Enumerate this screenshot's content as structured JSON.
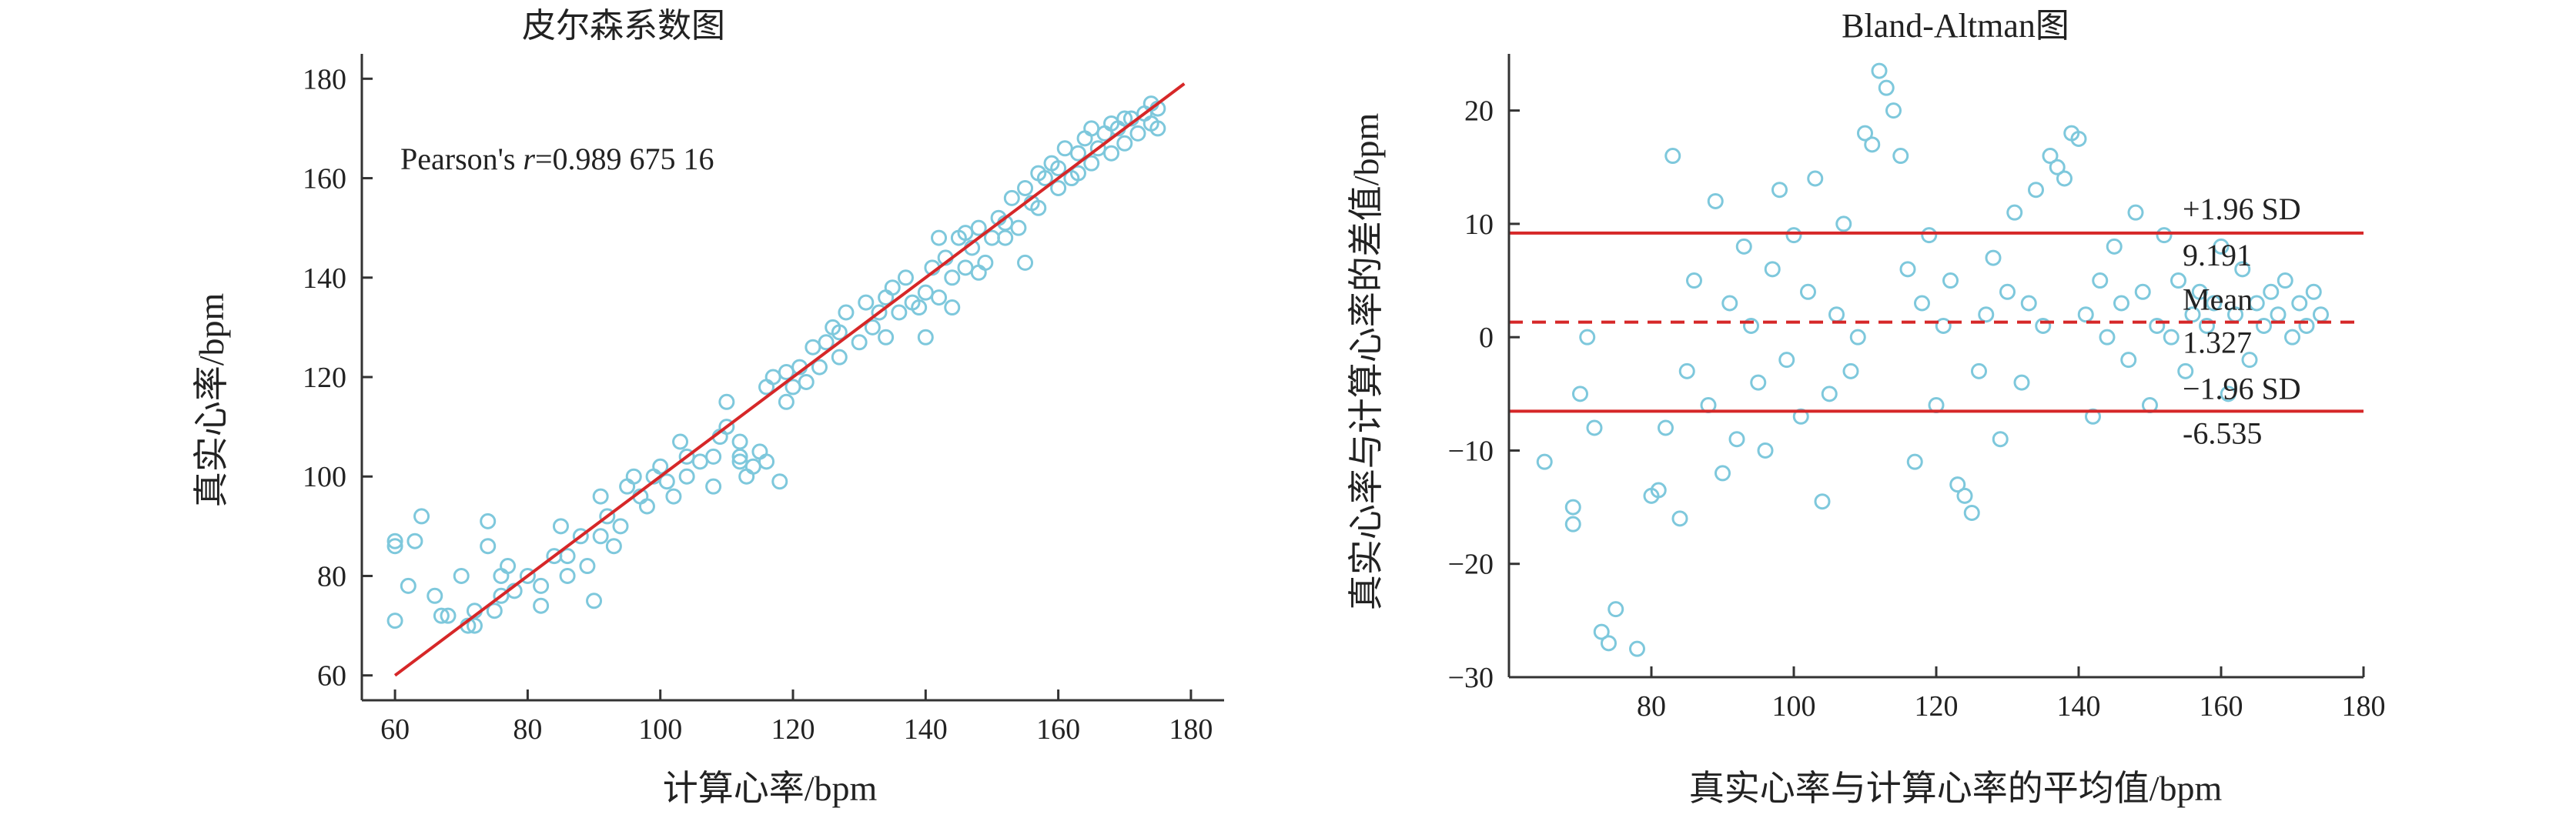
{
  "colors": {
    "points": "#7ec8dc",
    "fit_line": "#d62728",
    "limit_line": "#d62728",
    "axis": "#333333"
  },
  "chart_data": [
    {
      "type": "scatter",
      "title": "皮尔森系数图",
      "xlabel": "计算心率/bpm",
      "ylabel": "真实心率/bpm",
      "xlim": [
        55,
        185
      ],
      "ylim": [
        55,
        185
      ],
      "xticks": [
        60,
        80,
        100,
        120,
        140,
        160,
        180
      ],
      "yticks": [
        60,
        80,
        100,
        120,
        140,
        160,
        180
      ],
      "annotation": {
        "prefix": "Pearson's ",
        "var": "r",
        "value": "=0.989 675 16"
      },
      "fit_line": {
        "x": [
          60,
          179
        ],
        "y": [
          60,
          179
        ]
      },
      "grid": false,
      "points": [
        [
          60,
          71
        ],
        [
          60,
          86
        ],
        [
          60,
          87
        ],
        [
          62,
          78
        ],
        [
          63,
          87
        ],
        [
          64,
          92
        ],
        [
          66,
          76
        ],
        [
          67,
          72
        ],
        [
          68,
          72
        ],
        [
          70,
          80
        ],
        [
          71,
          70
        ],
        [
          72,
          70
        ],
        [
          72,
          73
        ],
        [
          74,
          86
        ],
        [
          74,
          91
        ],
        [
          75,
          73
        ],
        [
          76,
          76
        ],
        [
          76,
          80
        ],
        [
          77,
          82
        ],
        [
          78,
          77
        ],
        [
          80,
          80
        ],
        [
          82,
          74
        ],
        [
          82,
          78
        ],
        [
          85,
          90
        ],
        [
          86,
          84
        ],
        [
          90,
          75
        ],
        [
          91,
          96
        ],
        [
          92,
          92
        ],
        [
          94,
          90
        ],
        [
          95,
          98
        ],
        [
          96,
          100
        ],
        [
          98,
          94
        ],
        [
          100,
          102
        ],
        [
          102,
          96
        ],
        [
          103,
          107
        ],
        [
          104,
          100
        ],
        [
          106,
          103
        ],
        [
          108,
          104
        ],
        [
          109,
          108
        ],
        [
          110,
          110
        ],
        [
          112,
          107
        ],
        [
          113,
          100
        ],
        [
          114,
          102
        ],
        [
          115,
          105
        ],
        [
          116,
          103
        ],
        [
          118,
          99
        ],
        [
          117,
          120
        ],
        [
          119,
          115
        ],
        [
          120,
          118
        ],
        [
          121,
          122
        ],
        [
          122,
          119
        ],
        [
          123,
          126
        ],
        [
          124,
          122
        ],
        [
          125,
          127
        ],
        [
          126,
          130
        ],
        [
          127,
          124
        ],
        [
          128,
          133
        ],
        [
          130,
          127
        ],
        [
          131,
          135
        ],
        [
          132,
          130
        ],
        [
          133,
          133
        ],
        [
          134,
          128
        ],
        [
          135,
          138
        ],
        [
          136,
          133
        ],
        [
          137,
          140
        ],
        [
          138,
          135
        ],
        [
          140,
          137
        ],
        [
          140,
          128
        ],
        [
          142,
          136
        ],
        [
          143,
          144
        ],
        [
          144,
          140
        ],
        [
          145,
          148
        ],
        [
          146,
          142
        ],
        [
          147,
          146
        ],
        [
          148,
          150
        ],
        [
          149,
          143
        ],
        [
          150,
          148
        ],
        [
          151,
          152
        ],
        [
          152,
          151
        ],
        [
          153,
          156
        ],
        [
          154,
          150
        ],
        [
          155,
          158
        ],
        [
          156,
          155
        ],
        [
          157,
          154
        ],
        [
          158,
          160
        ],
        [
          159,
          163
        ],
        [
          160,
          158
        ],
        [
          161,
          166
        ],
        [
          162,
          160
        ],
        [
          163,
          165
        ],
        [
          164,
          168
        ],
        [
          165,
          163
        ],
        [
          166,
          166
        ],
        [
          167,
          169
        ],
        [
          168,
          165
        ],
        [
          169,
          170
        ],
        [
          170,
          167
        ],
        [
          171,
          172
        ],
        [
          172,
          169
        ],
        [
          173,
          173
        ],
        [
          174,
          171
        ],
        [
          175,
          174
        ],
        [
          175,
          170
        ],
        [
          155,
          143
        ],
        [
          160,
          162
        ],
        [
          165,
          170
        ],
        [
          142,
          148
        ],
        [
          144,
          134
        ],
        [
          139,
          134
        ],
        [
          148,
          141
        ],
        [
          112,
          104
        ],
        [
          112,
          103
        ],
        [
          108,
          98
        ],
        [
          104,
          104
        ],
        [
          97,
          96
        ],
        [
          93,
          86
        ],
        [
          88,
          88
        ],
        [
          84,
          84
        ],
        [
          86,
          80
        ],
        [
          89,
          82
        ],
        [
          91,
          88
        ],
        [
          99,
          100
        ],
        [
          101,
          99
        ],
        [
          110,
          115
        ],
        [
          116,
          118
        ],
        [
          119,
          121
        ],
        [
          127,
          129
        ],
        [
          134,
          136
        ],
        [
          141,
          142
        ],
        [
          146,
          149
        ],
        [
          152,
          148
        ],
        [
          157,
          161
        ],
        [
          163,
          161
        ],
        [
          168,
          171
        ],
        [
          170,
          172
        ],
        [
          174,
          175
        ]
      ]
    },
    {
      "type": "scatter",
      "title": "Bland-Altman图",
      "xlabel": "真实心率与计算心率的平均值/bpm",
      "ylabel": "真实心率与计算心率的差值/bpm",
      "xlim": [
        60,
        180
      ],
      "ylim": [
        -30,
        25
      ],
      "xticks": [
        80,
        100,
        120,
        140,
        160,
        180
      ],
      "yticks": [
        -30,
        -20,
        -10,
        0,
        10,
        20
      ],
      "grid": false,
      "limits": {
        "upper": {
          "label": "+1.96 SD",
          "value": 9.191
        },
        "mean": {
          "label": "Mean",
          "value": 1.327
        },
        "lower": {
          "label": "−1.96 SD",
          "value": -6.535
        }
      },
      "points": [
        [
          65,
          -11
        ],
        [
          69,
          -16.5
        ],
        [
          69,
          -15
        ],
        [
          70,
          -5
        ],
        [
          71,
          0
        ],
        [
          72,
          -8
        ],
        [
          73,
          -26
        ],
        [
          74,
          -27
        ],
        [
          75,
          -24
        ],
        [
          78,
          -27.5
        ],
        [
          80,
          -14
        ],
        [
          81,
          -13.5
        ],
        [
          82,
          -8
        ],
        [
          83,
          16
        ],
        [
          84,
          -16
        ],
        [
          85,
          -3
        ],
        [
          86,
          5
        ],
        [
          88,
          -6
        ],
        [
          89,
          12
        ],
        [
          90,
          -12
        ],
        [
          91,
          3
        ],
        [
          92,
          -9
        ],
        [
          93,
          8
        ],
        [
          94,
          1
        ],
        [
          95,
          -4
        ],
        [
          96,
          -10
        ],
        [
          97,
          6
        ],
        [
          98,
          13
        ],
        [
          99,
          -2
        ],
        [
          100,
          9
        ],
        [
          101,
          -7
        ],
        [
          102,
          4
        ],
        [
          103,
          14
        ],
        [
          104,
          -14.5
        ],
        [
          105,
          -5
        ],
        [
          106,
          2
        ],
        [
          107,
          10
        ],
        [
          108,
          -3
        ],
        [
          109,
          0
        ],
        [
          110,
          18
        ],
        [
          111,
          17
        ],
        [
          112,
          23.5
        ],
        [
          113,
          22
        ],
        [
          114,
          20
        ],
        [
          115,
          16
        ],
        [
          116,
          6
        ],
        [
          117,
          -11
        ],
        [
          118,
          3
        ],
        [
          119,
          9
        ],
        [
          120,
          -6
        ],
        [
          121,
          1
        ],
        [
          122,
          5
        ],
        [
          123,
          -13
        ],
        [
          124,
          -14
        ],
        [
          125,
          -15.5
        ],
        [
          126,
          -3
        ],
        [
          127,
          2
        ],
        [
          128,
          7
        ],
        [
          129,
          -9
        ],
        [
          130,
          4
        ],
        [
          131,
          11
        ],
        [
          132,
          -4
        ],
        [
          133,
          3
        ],
        [
          134,
          13
        ],
        [
          135,
          1
        ],
        [
          136,
          16
        ],
        [
          137,
          15
        ],
        [
          138,
          14
        ],
        [
          139,
          18
        ],
        [
          140,
          17.5
        ],
        [
          141,
          2
        ],
        [
          142,
          -7
        ],
        [
          143,
          5
        ],
        [
          144,
          0
        ],
        [
          145,
          8
        ],
        [
          146,
          3
        ],
        [
          147,
          -2
        ],
        [
          148,
          11
        ],
        [
          149,
          4
        ],
        [
          150,
          -6
        ],
        [
          151,
          1
        ],
        [
          152,
          9
        ],
        [
          153,
          0
        ],
        [
          154,
          5
        ],
        [
          155,
          -3
        ],
        [
          156,
          2
        ],
        [
          157,
          4
        ],
        [
          158,
          1
        ],
        [
          159,
          3
        ],
        [
          160,
          8
        ],
        [
          161,
          -5
        ],
        [
          162,
          2
        ],
        [
          163,
          6
        ],
        [
          164,
          -2
        ],
        [
          165,
          3
        ],
        [
          166,
          1
        ],
        [
          167,
          4
        ],
        [
          168,
          2
        ],
        [
          169,
          5
        ],
        [
          170,
          0
        ],
        [
          171,
          3
        ],
        [
          172,
          1
        ],
        [
          173,
          4
        ],
        [
          174,
          2
        ]
      ]
    }
  ]
}
